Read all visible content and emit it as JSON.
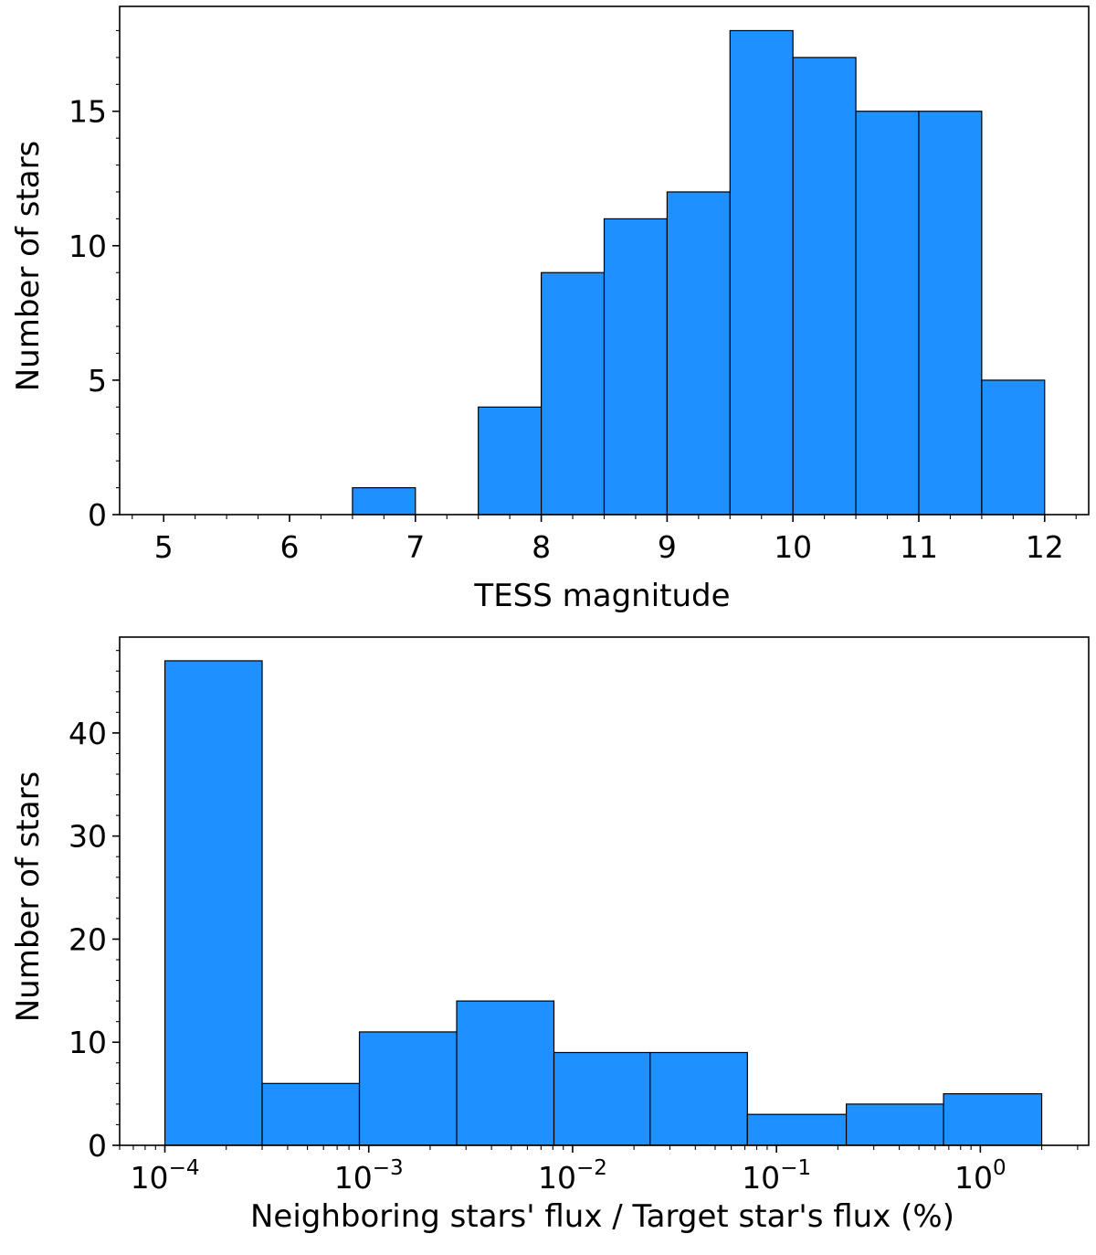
{
  "chart_data": [
    {
      "type": "bar",
      "histogram": true,
      "xscale": "linear",
      "bin_edges": [
        6.5,
        7.0,
        7.5,
        8.0,
        8.5,
        9.0,
        9.5,
        10.0,
        10.5,
        11.0,
        11.5,
        12.0
      ],
      "values": [
        1,
        0,
        4,
        9,
        11,
        12,
        18,
        17,
        15,
        15,
        5
      ],
      "bar_color": "#1E90FF",
      "xlim": [
        4.65,
        12.35
      ],
      "ylim": [
        0,
        18.9
      ],
      "xticks": [
        5,
        6,
        7,
        8,
        9,
        10,
        11,
        12
      ],
      "xtick_labels": [
        "5",
        "6",
        "7",
        "8",
        "9",
        "10",
        "11",
        "12"
      ],
      "yticks": [
        0,
        5,
        10,
        15
      ],
      "ytick_labels": [
        "0",
        "5",
        "10",
        "15"
      ],
      "xlabel": "TESS magnitude",
      "ylabel": "Number of stars"
    },
    {
      "type": "bar",
      "histogram": true,
      "xscale": "log",
      "bin_edges": [
        0.0001,
        0.0003,
        0.0009,
        0.0027,
        0.0081,
        0.024,
        0.072,
        0.22,
        0.66,
        2.0
      ],
      "values": [
        47,
        6,
        11,
        14,
        9,
        9,
        3,
        4,
        5
      ],
      "bar_color": "#1E90FF",
      "xlim": [
        6e-05,
        3.4
      ],
      "ylim": [
        0,
        49.3
      ],
      "xticks": [
        0.0001,
        0.001,
        0.01,
        0.1,
        1
      ],
      "xtick_labels": [
        {
          "base": "10",
          "exp": "−4"
        },
        {
          "base": "10",
          "exp": "−3"
        },
        {
          "base": "10",
          "exp": "−2"
        },
        {
          "base": "10",
          "exp": "−1"
        },
        {
          "base": "10",
          "exp": "0"
        }
      ],
      "yticks": [
        0,
        10,
        20,
        30,
        40
      ],
      "ytick_labels": [
        "0",
        "10",
        "20",
        "30",
        "40"
      ],
      "xlabel": "Neighboring stars' flux / Target star's flux (%)",
      "ylabel": "Number of stars"
    }
  ]
}
